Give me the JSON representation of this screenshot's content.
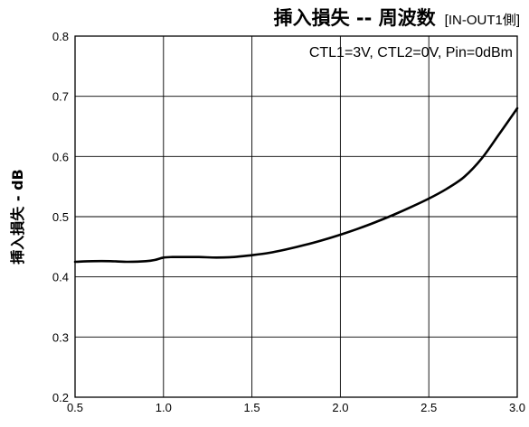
{
  "chart_data": {
    "type": "line",
    "title": "挿入損失 -- 周波数",
    "subtitle": "[IN-OUT1側]",
    "xlabel": "",
    "ylabel": "挿入損失 - dB",
    "annotation": "CTL1=3V, CTL2=0V, Pin=0dBm",
    "xlim": [
      0.5,
      3.0
    ],
    "ylim": [
      0.2,
      0.8
    ],
    "xticks": [
      "0.5",
      "1.0",
      "1.5",
      "2.0",
      "2.5",
      "3.0"
    ],
    "yticks": [
      "0.2",
      "0.3",
      "0.4",
      "0.5",
      "0.6",
      "0.7",
      "0.8"
    ],
    "grid": true,
    "series": [
      {
        "x": [
          0.5,
          0.6,
          0.7,
          0.8,
          0.9,
          0.95,
          1.0,
          1.05,
          1.1,
          1.2,
          1.3,
          1.4,
          1.5,
          1.6,
          1.7,
          1.8,
          1.9,
          2.0,
          2.1,
          2.2,
          2.3,
          2.4,
          2.5,
          2.6,
          2.7,
          2.8,
          2.9,
          3.0
        ],
        "y": [
          0.425,
          0.426,
          0.426,
          0.425,
          0.426,
          0.428,
          0.432,
          0.433,
          0.433,
          0.433,
          0.432,
          0.433,
          0.436,
          0.44,
          0.446,
          0.453,
          0.461,
          0.47,
          0.48,
          0.491,
          0.503,
          0.516,
          0.53,
          0.546,
          0.566,
          0.597,
          0.638,
          0.68
        ]
      }
    ]
  }
}
